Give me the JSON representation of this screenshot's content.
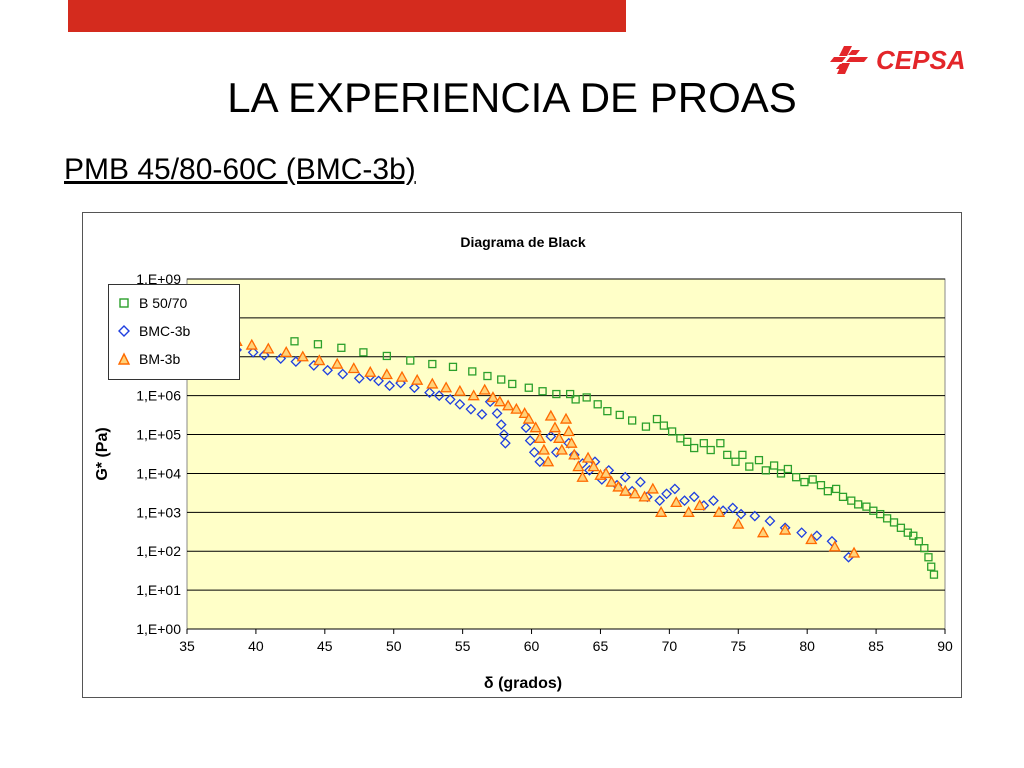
{
  "slide": {
    "title": "LA EXPERIENCIA DE PROAS",
    "subtitle": "PMB 45/80-60C (BMC-3b)",
    "logo_text": "CEPSA",
    "top_bar_color": "#d42b1e",
    "logo_color": "#e3262a"
  },
  "chart_data": {
    "type": "scatter",
    "title": "Diagrama de Black",
    "xlabel": "δ (grados)",
    "ylabel": "G* (Pa)",
    "xlim": [
      35,
      90
    ],
    "ylim_log10": [
      0,
      9
    ],
    "y_scale": "log",
    "x_ticks": [
      "35",
      "40",
      "45",
      "50",
      "55",
      "60",
      "65",
      "70",
      "75",
      "80",
      "85",
      "90"
    ],
    "y_ticks": [
      "1,E+00",
      "1,E+01",
      "1,E+02",
      "1,E+03",
      "1,E+04",
      "1,E+05",
      "1,E+06",
      "1,E+07",
      "1,E+08",
      "1,E+09"
    ],
    "plot_background": "#ffffc8",
    "grid": "horizontal",
    "legend_position": "bottom-left",
    "series": [
      {
        "name": "B 50/70",
        "marker": "square",
        "color": "#2ca02c",
        "points": [
          [
            42.8,
            25000000.0
          ],
          [
            44.5,
            21000000.0
          ],
          [
            46.2,
            17000000.0
          ],
          [
            47.8,
            13000000.0
          ],
          [
            49.5,
            10500000.0
          ],
          [
            51.2,
            8000000.0
          ],
          [
            52.8,
            6500000.0
          ],
          [
            54.3,
            5500000.0
          ],
          [
            55.7,
            4200000.0
          ],
          [
            56.8,
            3200000.0
          ],
          [
            57.8,
            2600000.0
          ],
          [
            58.6,
            2000000.0
          ],
          [
            59.8,
            1600000.0
          ],
          [
            60.8,
            1300000.0
          ],
          [
            61.8,
            1100000.0
          ],
          [
            62.8,
            1100000.0
          ],
          [
            63.2,
            800000.0
          ],
          [
            64,
            900000.0
          ],
          [
            64.8,
            600000.0
          ],
          [
            65.5,
            400000.0
          ],
          [
            66.4,
            320000.0
          ],
          [
            67.3,
            230000.0
          ],
          [
            68.3,
            160000.0
          ],
          [
            69.1,
            250000.0
          ],
          [
            69.6,
            170000.0
          ],
          [
            70.2,
            120000.0
          ],
          [
            70.8,
            80000.0
          ],
          [
            71.3,
            65000.0
          ],
          [
            71.8,
            45000.0
          ],
          [
            72.5,
            60000.0
          ],
          [
            73,
            40000.0
          ],
          [
            73.7,
            60000.0
          ],
          [
            74.2,
            30000.0
          ],
          [
            74.8,
            20000.0
          ],
          [
            75.3,
            30000.0
          ],
          [
            75.8,
            15000.0
          ],
          [
            76.5,
            22000.0
          ],
          [
            77,
            12000.0
          ],
          [
            77.6,
            16000.0
          ],
          [
            78.1,
            10000.0
          ],
          [
            78.6,
            13000.0
          ],
          [
            79.2,
            8000.0
          ],
          [
            79.8,
            6000.0
          ],
          [
            80.4,
            7000.0
          ],
          [
            81,
            5000.0
          ],
          [
            81.5,
            3500.0
          ],
          [
            82.1,
            4000.0
          ],
          [
            82.6,
            2500.0
          ],
          [
            83.2,
            2000.0
          ],
          [
            83.7,
            1600.0
          ],
          [
            84.3,
            1400.0
          ],
          [
            84.8,
            1100.0
          ],
          [
            85.3,
            900.0
          ],
          [
            85.8,
            700.0
          ],
          [
            86.3,
            550.0
          ],
          [
            86.8,
            400.0
          ],
          [
            87.3,
            300.0
          ],
          [
            87.7,
            250.0
          ],
          [
            88.1,
            180.0
          ],
          [
            88.5,
            120.0
          ],
          [
            88.8,
            70.0
          ],
          [
            89,
            40.0
          ],
          [
            89.2,
            25.0
          ]
        ]
      },
      {
        "name": "BMC-3b",
        "marker": "diamond",
        "color": "#1f3fe0",
        "points": [
          [
            38.6,
            15000000.0
          ],
          [
            39.8,
            13000000.0
          ],
          [
            40.6,
            11000000.0
          ],
          [
            41.8,
            9000000.0
          ],
          [
            42.9,
            7500000.0
          ],
          [
            44.2,
            6000000.0
          ],
          [
            45.2,
            4500000.0
          ],
          [
            46.3,
            3600000.0
          ],
          [
            47.5,
            2800000.0
          ],
          [
            48.3,
            3200000.0
          ],
          [
            48.9,
            2400000.0
          ],
          [
            49.7,
            1800000.0
          ],
          [
            50.5,
            2100000.0
          ],
          [
            51.5,
            1600000.0
          ],
          [
            52.6,
            1200000.0
          ],
          [
            53.3,
            1000000.0
          ],
          [
            54.1,
            800000.0
          ],
          [
            54.8,
            600000.0
          ],
          [
            55.6,
            450000.0
          ],
          [
            56.4,
            330000.0
          ],
          [
            57,
            700000.0
          ],
          [
            57.5,
            350000.0
          ],
          [
            57.8,
            180000.0
          ],
          [
            58,
            100000.0
          ],
          [
            58.1,
            60000.0
          ],
          [
            59.6,
            150000.0
          ],
          [
            59.9,
            70000.0
          ],
          [
            60.2,
            35000.0
          ],
          [
            60.6,
            20000.0
          ],
          [
            61.4,
            90000.0
          ],
          [
            61.8,
            35000.0
          ],
          [
            62.7,
            60000.0
          ],
          [
            63.1,
            30000.0
          ],
          [
            63.7,
            18000.0
          ],
          [
            64.2,
            12000.0
          ],
          [
            64.6,
            20000.0
          ],
          [
            65.1,
            7000.0
          ],
          [
            65.6,
            12000.0
          ],
          [
            66.2,
            5000.0
          ],
          [
            66.8,
            8000.0
          ],
          [
            67.3,
            3500.0
          ],
          [
            67.9,
            6000.0
          ],
          [
            68.4,
            2500.0
          ],
          [
            69.3,
            2000.0
          ],
          [
            69.8,
            3000.0
          ],
          [
            70.4,
            4000.0
          ],
          [
            71.1,
            2000.0
          ],
          [
            71.8,
            2500.0
          ],
          [
            72.5,
            1500.0
          ],
          [
            73.2,
            2000.0
          ],
          [
            73.9,
            1100.0
          ],
          [
            74.6,
            1300.0
          ],
          [
            75.2,
            900.0
          ],
          [
            76.2,
            800.0
          ],
          [
            77.3,
            600.0
          ],
          [
            78.4,
            400.0
          ],
          [
            79.6,
            300.0
          ],
          [
            80.7,
            250.0
          ],
          [
            81.8,
            180.0
          ],
          [
            83,
            70.0
          ]
        ]
      },
      {
        "name": "BM-3b",
        "marker": "triangle",
        "color": "#ff6a00",
        "points": [
          [
            38.6,
            25000000.0
          ],
          [
            39.7,
            20000000.0
          ],
          [
            40.9,
            16000000.0
          ],
          [
            42.2,
            13000000.0
          ],
          [
            43.4,
            10000000.0
          ],
          [
            44.6,
            8000000.0
          ],
          [
            45.9,
            6500000.0
          ],
          [
            47.1,
            5000000.0
          ],
          [
            48.3,
            4000000.0
          ],
          [
            49.5,
            3500000.0
          ],
          [
            50.6,
            3000000.0
          ],
          [
            51.7,
            2500000.0
          ],
          [
            52.8,
            2000000.0
          ],
          [
            53.8,
            1600000.0
          ],
          [
            54.8,
            1300000.0
          ],
          [
            55.8,
            1000000.0
          ],
          [
            56.6,
            1400000.0
          ],
          [
            57.2,
            900000.0
          ],
          [
            57.7,
            700000.0
          ],
          [
            58.3,
            550000.0
          ],
          [
            58.9,
            450000.0
          ],
          [
            59.5,
            350000.0
          ],
          [
            59.8,
            250000.0
          ],
          [
            60.3,
            150000.0
          ],
          [
            60.6,
            80000.0
          ],
          [
            60.9,
            40000.0
          ],
          [
            61.2,
            20000.0
          ],
          [
            61.4,
            300000.0
          ],
          [
            61.7,
            150000.0
          ],
          [
            62,
            80000.0
          ],
          [
            62.2,
            40000.0
          ],
          [
            62.5,
            250000.0
          ],
          [
            62.7,
            120000.0
          ],
          [
            62.9,
            60000.0
          ],
          [
            63.1,
            30000.0
          ],
          [
            63.4,
            15000.0
          ],
          [
            63.7,
            8000.0
          ],
          [
            64.1,
            25000.0
          ],
          [
            64.5,
            15000.0
          ],
          [
            65,
            9000.0
          ],
          [
            65.4,
            10000.0
          ],
          [
            65.8,
            6000.0
          ],
          [
            66.3,
            4500.0
          ],
          [
            66.8,
            3500.0
          ],
          [
            67.5,
            3000.0
          ],
          [
            68.2,
            2500.0
          ],
          [
            68.8,
            4000.0
          ],
          [
            69.4,
            1000.0
          ],
          [
            70.5,
            1800.0
          ],
          [
            71.4,
            1000.0
          ],
          [
            72.2,
            1500.0
          ],
          [
            73.6,
            1000.0
          ],
          [
            75,
            500.0
          ],
          [
            76.8,
            300.0
          ],
          [
            78.4,
            350.0
          ],
          [
            80.3,
            200.0
          ],
          [
            82,
            130.0
          ],
          [
            83.4,
            90.0
          ]
        ]
      }
    ]
  }
}
